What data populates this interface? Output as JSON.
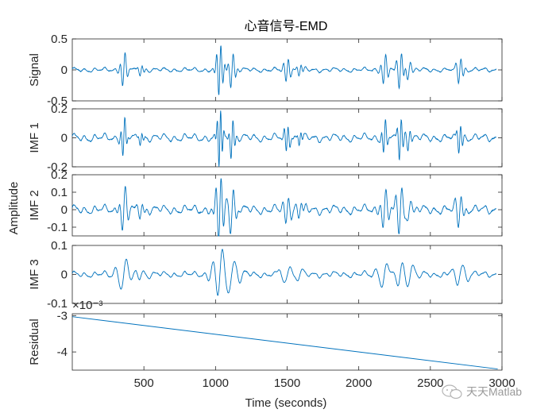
{
  "chart_data": {
    "type": "line",
    "title": "心音信号-EMD",
    "xlabel": "Time (seconds)",
    "ylabel": "Amplitude",
    "xlim": [
      0,
      3000
    ],
    "xticks": [
      500,
      1000,
      1500,
      2000,
      2500,
      3000
    ],
    "xtick_labels": [
      "500",
      "1000",
      "1500",
      "2000",
      "2500",
      "3000"
    ],
    "series_color": "#0072bd",
    "beats": [
      {
        "center": 360,
        "amp": 0.28,
        "freq": 0.05
      },
      {
        "center": 480,
        "amp": 0.07,
        "freq": 0.06
      },
      {
        "center": 1030,
        "amp": 0.42,
        "freq": 0.06
      },
      {
        "center": 1115,
        "amp": 0.28,
        "freq": 0.05
      },
      {
        "center": 1500,
        "amp": 0.22,
        "freq": 0.05
      },
      {
        "center": 1590,
        "amp": 0.08,
        "freq": 0.06
      },
      {
        "center": 2180,
        "amp": 0.24,
        "freq": 0.05
      },
      {
        "center": 2290,
        "amp": 0.3,
        "freq": 0.05
      },
      {
        "center": 2350,
        "amp": 0.18,
        "freq": 0.04
      },
      {
        "center": 2705,
        "amp": 0.22,
        "freq": 0.05
      }
    ],
    "subplots": [
      {
        "name": "Signal",
        "ylabel": "Signal",
        "ylim": [
          -0.5,
          0.5
        ],
        "yticks": [
          -0.5,
          0,
          0.5
        ],
        "ytick_labels": [
          "-0.5",
          "0",
          "0.5"
        ],
        "kind": "signal",
        "scale": 1.0,
        "spread": 1.0
      },
      {
        "name": "IMF 1",
        "ylabel": "IMF 1",
        "ylim": [
          -0.2,
          0.2
        ],
        "yticks": [
          -0.2,
          0,
          0.2
        ],
        "ytick_labels": [
          "-0.2",
          "0",
          "0.2"
        ],
        "kind": "imf",
        "scale": 0.48,
        "spread": 0.8
      },
      {
        "name": "IMF 2",
        "ylabel": "IMF 2",
        "ylim": [
          -0.15,
          0.2
        ],
        "yticks": [
          -0.1,
          0,
          0.1,
          0.2
        ],
        "ytick_labels": [
          "-0.1",
          "0",
          "0.1",
          "0.2"
        ],
        "kind": "imf",
        "scale": 0.45,
        "spread": 1.2
      },
      {
        "name": "IMF 3",
        "ylabel": "IMF 3",
        "ylim": [
          -0.1,
          0.1
        ],
        "yticks": [
          -0.1,
          0,
          0.1
        ],
        "ytick_labels": [
          "-0.1",
          "0",
          "0.1"
        ],
        "kind": "imf",
        "scale": 0.18,
        "spread": 2.2
      },
      {
        "name": "Residual",
        "ylabel": "Residual",
        "ylim": [
          -4.5,
          -2.95
        ],
        "yticks": [
          -4,
          -3
        ],
        "ytick_labels": [
          "-4",
          "-3"
        ],
        "kind": "residual",
        "exponent_label": "×10⁻³",
        "line": {
          "x": [
            0,
            2970
          ],
          "y": [
            -3.03,
            -4.47
          ]
        }
      }
    ]
  },
  "watermark": "天天Matlab"
}
